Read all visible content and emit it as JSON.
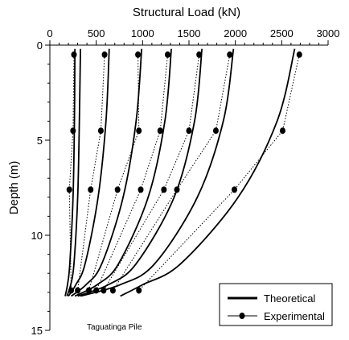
{
  "chart_data": {
    "type": "line",
    "x_axis_title": "Structural Load (kN)",
    "y_axis_title": "Depth (m)",
    "xlim": [
      0,
      3000
    ],
    "ylim": [
      15,
      0
    ],
    "x_ticks": [
      "0",
      "500",
      "1000",
      "1500",
      "2000",
      "2500",
      "3000"
    ],
    "y_ticks": [
      "0",
      "5",
      "10",
      "15"
    ],
    "x_axis_position": "top",
    "y_axis_inverted": true,
    "grid": false,
    "legend_position": "bottom-right",
    "legend": {
      "theoretical": "Theoretical",
      "experimental": "Experimental"
    },
    "annotation": "Taguatinga Pile",
    "theoretical_series": [
      {
        "points": [
          [
            270,
            0.2
          ],
          [
            265,
            4
          ],
          [
            250,
            8
          ],
          [
            215,
            11.5
          ],
          [
            190,
            12.6
          ],
          [
            165,
            13.2
          ]
        ]
      },
      {
        "points": [
          [
            330,
            0.2
          ],
          [
            318,
            4
          ],
          [
            300,
            8
          ],
          [
            260,
            11.5
          ],
          [
            225,
            12.6
          ],
          [
            185,
            13.2
          ]
        ]
      },
      {
        "points": [
          [
            640,
            0.2
          ],
          [
            605,
            4
          ],
          [
            520,
            8
          ],
          [
            380,
            11.5
          ],
          [
            280,
            12.6
          ],
          [
            200,
            13.2
          ]
        ]
      },
      {
        "points": [
          [
            990,
            0.2
          ],
          [
            930,
            4
          ],
          [
            790,
            8
          ],
          [
            560,
            11.5
          ],
          [
            390,
            12.6
          ],
          [
            230,
            13.2
          ]
        ]
      },
      {
        "points": [
          [
            1310,
            0.2
          ],
          [
            1240,
            4
          ],
          [
            1060,
            8
          ],
          [
            740,
            11.5
          ],
          [
            510,
            12.6
          ],
          [
            270,
            13.2
          ]
        ]
      },
      {
        "points": [
          [
            1640,
            0.2
          ],
          [
            1560,
            4
          ],
          [
            1340,
            8
          ],
          [
            930,
            11.5
          ],
          [
            630,
            12.6
          ],
          [
            300,
            13.2
          ]
        ]
      },
      {
        "points": [
          [
            1980,
            0.2
          ],
          [
            1870,
            4
          ],
          [
            1590,
            8
          ],
          [
            1130,
            11.5
          ],
          [
            760,
            12.6
          ],
          [
            330,
            13.2
          ]
        ]
      },
      {
        "points": [
          [
            2640,
            0.2
          ],
          [
            2450,
            4
          ],
          [
            2030,
            8
          ],
          [
            1410,
            11.5
          ],
          [
            1000,
            12.6
          ],
          [
            760,
            13.2
          ]
        ]
      }
    ],
    "experimental_series": [
      {
        "points": [
          [
            260,
            0.5
          ],
          [
            250,
            4.5
          ],
          [
            210,
            7.6
          ],
          [
            230,
            12.9
          ]
        ]
      },
      {
        "points": [
          [
            590,
            0.5
          ],
          [
            550,
            4.5
          ],
          [
            440,
            7.6
          ],
          [
            300,
            12.9
          ]
        ]
      },
      {
        "points": [
          [
            950,
            0.5
          ],
          [
            960,
            4.5
          ],
          [
            730,
            7.6
          ],
          [
            420,
            12.9
          ]
        ]
      },
      {
        "points": [
          [
            1270,
            0.5
          ],
          [
            1190,
            4.5
          ],
          [
            980,
            7.6
          ],
          [
            500,
            12.9
          ]
        ]
      },
      {
        "points": [
          [
            1610,
            0.5
          ],
          [
            1500,
            4.5
          ],
          [
            1230,
            7.6
          ],
          [
            580,
            12.9
          ]
        ]
      },
      {
        "points": [
          [
            1940,
            0.5
          ],
          [
            1790,
            4.5
          ],
          [
            1370,
            7.6
          ],
          [
            680,
            12.9
          ]
        ]
      },
      {
        "points": [
          [
            2690,
            0.5
          ],
          [
            2510,
            4.5
          ],
          [
            1990,
            7.6
          ],
          [
            960,
            12.9
          ]
        ]
      }
    ]
  }
}
